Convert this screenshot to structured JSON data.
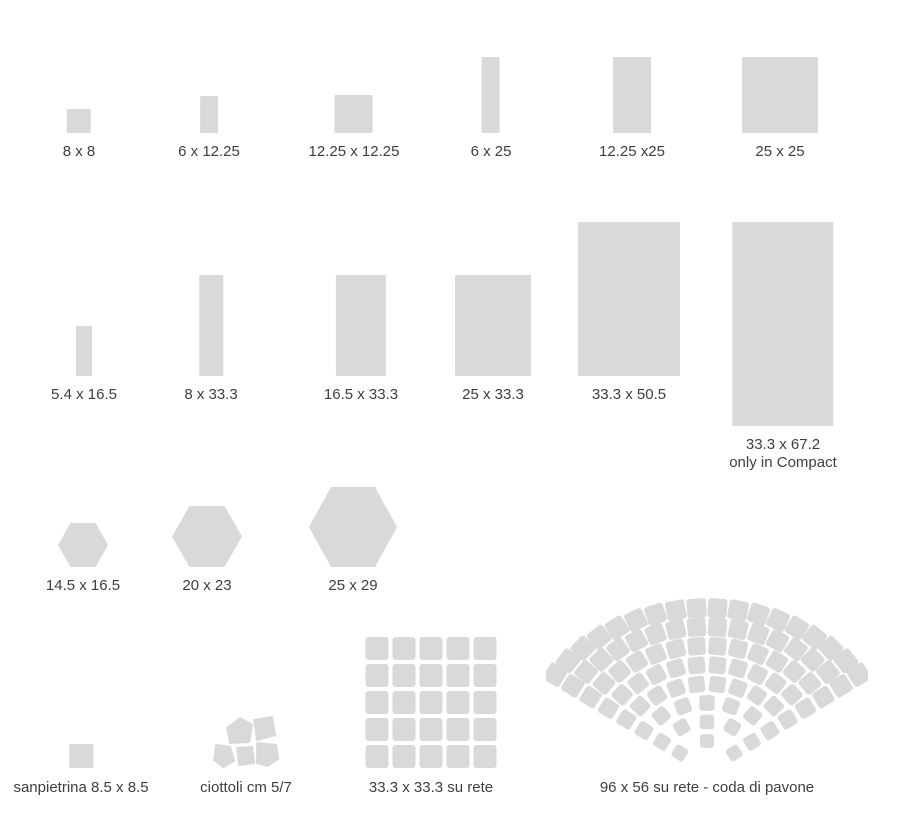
{
  "colors": {
    "swatch": "#d9d9d9",
    "text": "#3e3e3e",
    "background": "#ffffff"
  },
  "rows": [
    {
      "name": "small-formats",
      "items": [
        {
          "label": "8 x 8",
          "shape": "square"
        },
        {
          "label": "6 x 12.25",
          "shape": "rectangle"
        },
        {
          "label": "12.25 x 12.25",
          "shape": "square"
        },
        {
          "label": "6 x 25",
          "shape": "rectangle"
        },
        {
          "label": "12.25 x25",
          "shape": "rectangle"
        },
        {
          "label": "25 x 25",
          "shape": "square"
        }
      ]
    },
    {
      "name": "large-formats",
      "items": [
        {
          "label": "5.4 x 16.5",
          "shape": "rectangle"
        },
        {
          "label": "8 x 33.3",
          "shape": "rectangle"
        },
        {
          "label": "16.5 x 33.3",
          "shape": "rectangle"
        },
        {
          "label": "25 x 33.3",
          "shape": "rectangle"
        },
        {
          "label": "33.3 x 50.5",
          "shape": "rectangle"
        },
        {
          "label": "33.3 x 67.2",
          "sublabel": "only in Compact",
          "shape": "rectangle"
        }
      ]
    },
    {
      "name": "hexagon-formats",
      "items": [
        {
          "label": "14.5 x 16.5",
          "shape": "hexagon"
        },
        {
          "label": "20 x 23",
          "shape": "hexagon"
        },
        {
          "label": "25 x 29",
          "shape": "hexagon"
        }
      ]
    },
    {
      "name": "special-formats",
      "items": [
        {
          "label": "sanpietrina 8.5 x 8.5",
          "shape": "square"
        },
        {
          "label": "ciottoli cm 5/7",
          "shape": "pebbles"
        },
        {
          "label": "33.3 x 33.3 su rete",
          "shape": "mesh-grid"
        },
        {
          "label": "96 x 56 su rete - coda di pavone",
          "shape": "fan-mosaic"
        }
      ]
    }
  ],
  "mosaics": {
    "grid": {
      "rows": 5,
      "cols": 5
    },
    "fan": {
      "stretch": 1.16,
      "half_angle_deg": 54,
      "tile_size_base": 13,
      "tile_size_step": 0.8,
      "arcs": [
        {
          "radius": 29,
          "tiles": 3
        },
        {
          "radius": 48,
          "tiles": 5
        },
        {
          "radius": 67,
          "tiles": 7
        },
        {
          "radius": 86,
          "tiles": 10
        },
        {
          "radius": 105,
          "tiles": 12
        },
        {
          "radius": 124,
          "tiles": 14
        },
        {
          "radius": 143,
          "tiles": 16
        },
        {
          "radius": 162,
          "tiles": 18
        }
      ]
    }
  }
}
